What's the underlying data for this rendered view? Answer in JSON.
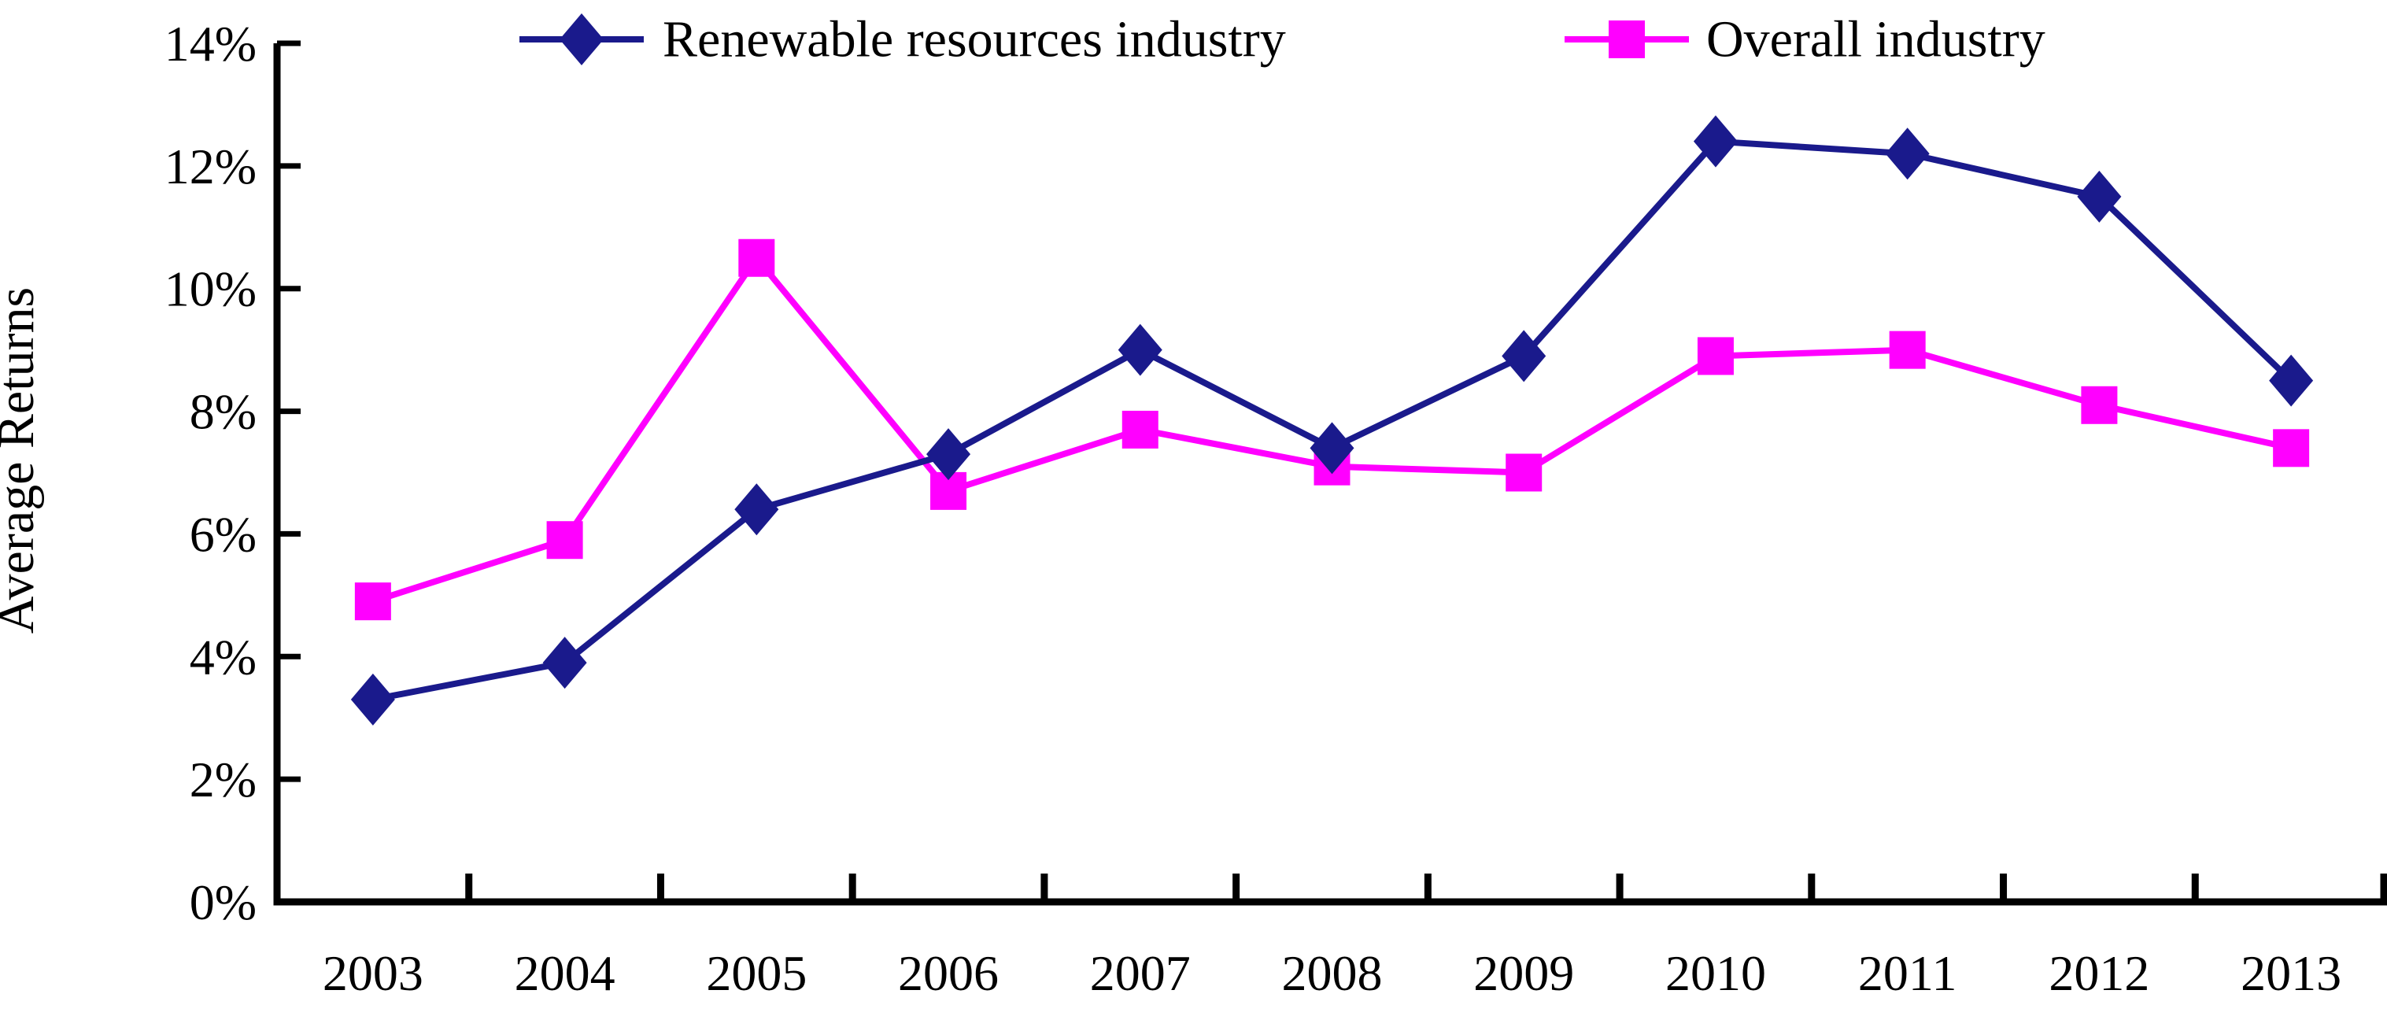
{
  "chart_data": {
    "type": "line",
    "title": "",
    "ylabel": "Average Returns",
    "xlabel": "",
    "ylim": [
      0,
      14
    ],
    "ytick_step": 2,
    "ytick_labels": [
      "0%",
      "2%",
      "4%",
      "6%",
      "8%",
      "10%",
      "12%",
      "14%"
    ],
    "categories": [
      "2003",
      "2004",
      "2005",
      "2006",
      "2007",
      "2008",
      "2009",
      "2010",
      "2011",
      "2012",
      "2013"
    ],
    "grid": "off",
    "legend_position": "top",
    "axis_color": "#000000",
    "background_color": "#ffffff",
    "series": [
      {
        "name": "Renewable resources industry",
        "color": "#1a1a8c",
        "marker": "diamond",
        "values": [
          3.3,
          3.9,
          6.4,
          7.3,
          9.0,
          7.4,
          8.9,
          12.4,
          12.2,
          11.5,
          8.5
        ]
      },
      {
        "name": "Overall industry",
        "color": "#ff00ff",
        "marker": "square",
        "values": [
          4.9,
          5.9,
          10.5,
          6.7,
          7.7,
          7.1,
          7.0,
          8.9,
          9.0,
          8.1,
          7.4
        ]
      }
    ]
  }
}
